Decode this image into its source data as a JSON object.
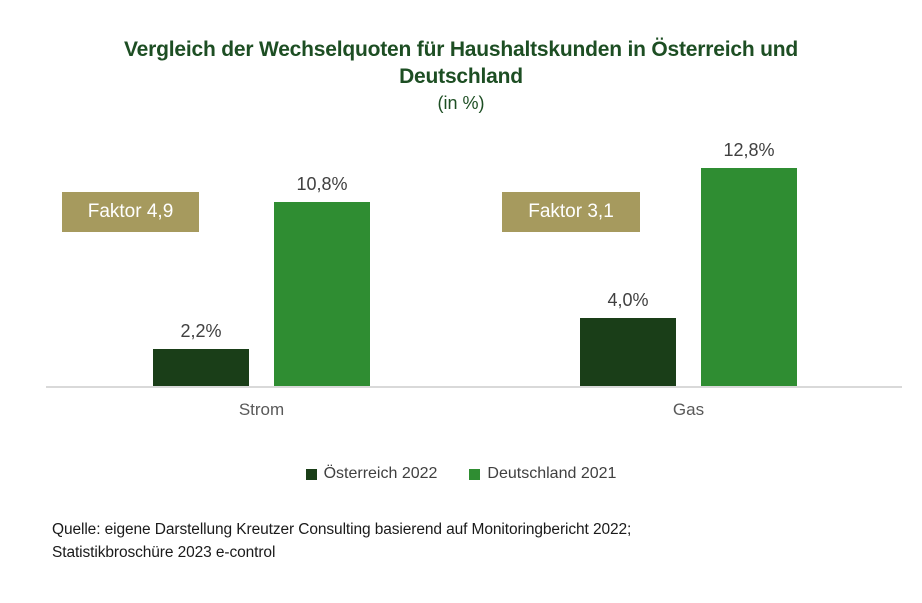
{
  "header": {
    "title_lines": [
      "Vergleich der Wechselquoten für Haushaltskunden in Österreich und",
      "Deutschland"
    ],
    "subtitle": "(in %)"
  },
  "chart_data": {
    "type": "bar",
    "title": "Vergleich der Wechselquoten für Haushaltskunden in Österreich und Deutschland (in %)",
    "categories": [
      "Strom",
      "Gas"
    ],
    "series": [
      {
        "name": "Österreich 2022",
        "values": [
          2.2,
          4.0
        ],
        "labels": [
          "2,2%",
          "4,0%"
        ],
        "color": "#1a3e18"
      },
      {
        "name": "Deutschland 2021",
        "values": [
          10.8,
          12.8
        ],
        "labels": [
          "10,8%",
          "12,8%"
        ],
        "color": "#2f8d32"
      }
    ],
    "annotations": [
      {
        "label": "Faktor 4,9",
        "category": "Strom"
      },
      {
        "label": "Faktor 3,1",
        "category": "Gas"
      }
    ],
    "xlabel": "",
    "ylabel": "",
    "ylim": [
      0,
      14
    ],
    "grid": false,
    "value_labels_shown": true,
    "legend_position": "bottom"
  },
  "colors": {
    "title_green": "#1d4e23",
    "annotation_khaki": "#a69a5e",
    "annotation_text": "#ffffff",
    "axis_line_gray": "#d9d9d9",
    "value_label_gray": "#404040",
    "category_label_gray": "#595959",
    "source_text": "#1a1a1a",
    "background": "#ffffff"
  },
  "source": {
    "line1": "Quelle: eigene Darstellung Kreutzer Consulting basierend auf Monitoringbericht 2022;",
    "line2": "Statistikbroschüre 2023 e-control"
  }
}
